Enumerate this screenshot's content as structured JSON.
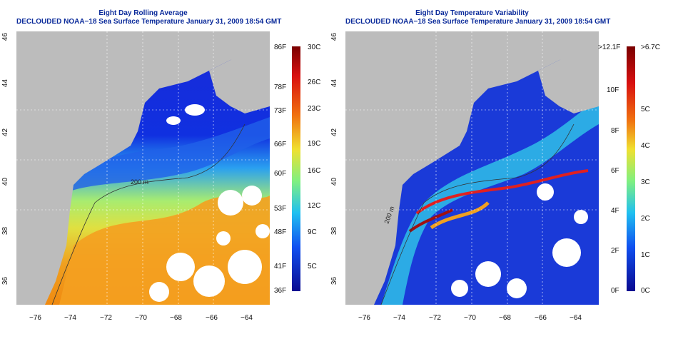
{
  "left_panel": {
    "title_line1": "Eight Day Rolling Average",
    "title_line2": "DECLOUDED NOAA−18 Sea Surface Temperature January 31, 2009 18:54 GMT",
    "colorbar_left_labels": [
      "86F",
      "78F",
      "73F",
      "66F",
      "60F",
      "53F",
      "48F",
      "41F",
      "36F"
    ],
    "colorbar_right_labels": [
      "30C",
      "26C",
      "23C",
      "19C",
      "16C",
      "12C",
      "9C",
      "5C"
    ],
    "contour_label": "200 m"
  },
  "right_panel": {
    "title_line1": "Eight Day Temperature Variability",
    "title_line2": "DECLOUDED NOAA−18 Sea Surface Temperature January 31, 2009 18:54 GMT",
    "colorbar_left_labels": [
      ">12.1F",
      "10F",
      "8F",
      "6F",
      "4F",
      "2F",
      "0F"
    ],
    "colorbar_right_labels": [
      ">6.7C",
      "5C",
      "4C",
      "3C",
      "2C",
      "1C",
      "0C"
    ],
    "contour_label": "200 m"
  },
  "axes": {
    "x_ticks": [
      "−76",
      "−74",
      "−72",
      "−70",
      "−68",
      "−66",
      "−64"
    ],
    "y_ticks": [
      "46",
      "44",
      "42",
      "40",
      "38",
      "36"
    ]
  },
  "colors": {
    "land": "#bcbcbc",
    "cloud": "#ffffff",
    "title": "#0a2a9a"
  }
}
